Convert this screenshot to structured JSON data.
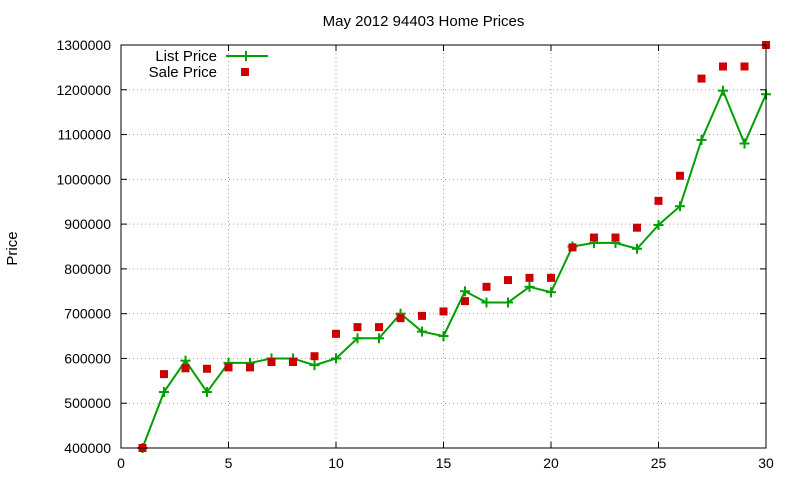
{
  "chart_data": {
    "type": "line",
    "title": "May 2012 94403 Home Prices",
    "xlabel": "",
    "ylabel": "Price",
    "xlim": [
      0,
      30
    ],
    "ylim": [
      400000,
      1300000
    ],
    "x_ticks": [
      "0",
      "5",
      "10",
      "15",
      "20",
      "25",
      "30"
    ],
    "y_ticks": [
      "400000",
      "500000",
      "600000",
      "700000",
      "800000",
      "900000",
      "1000000",
      "1100000",
      "1200000",
      "1300000"
    ],
    "grid": true,
    "legend_position": "top-left",
    "x": [
      1,
      2,
      3,
      4,
      5,
      6,
      7,
      8,
      9,
      10,
      11,
      12,
      13,
      14,
      15,
      16,
      17,
      18,
      19,
      20,
      21,
      22,
      23,
      24,
      25,
      26,
      27,
      28,
      29,
      30
    ],
    "series": [
      {
        "name": "List Price",
        "style": "line-with-plus-markers",
        "color": "#00a000",
        "values": [
          400000,
          525000,
          595000,
          525000,
          590000,
          590000,
          600000,
          600000,
          585000,
          600000,
          645000,
          645000,
          700000,
          660000,
          650000,
          750000,
          725000,
          725000,
          760000,
          748000,
          850000,
          858000,
          858000,
          845000,
          898000,
          940000,
          1088000,
          1198000,
          1080000,
          1190000
        ]
      },
      {
        "name": "Sale Price",
        "style": "square-points",
        "color": "#cc0000",
        "values": [
          400000,
          565000,
          578000,
          577000,
          580000,
          580000,
          592000,
          592000,
          605000,
          655000,
          670000,
          670000,
          690000,
          695000,
          705000,
          728000,
          760000,
          775000,
          780000,
          780000,
          848000,
          870000,
          870000,
          892000,
          952000,
          1008000,
          1225000,
          1252000,
          1252000,
          1300000
        ]
      }
    ]
  }
}
